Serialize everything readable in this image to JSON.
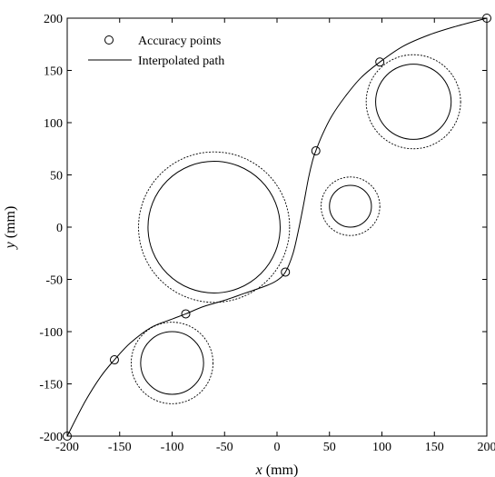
{
  "chart_data": {
    "type": "scatter",
    "title": "",
    "xlabel_var": "x",
    "xlabel_unit": " (mm)",
    "ylabel_var": "y",
    "ylabel_unit": " (mm)",
    "xlim": [
      -200,
      200
    ],
    "ylim": [
      -200,
      200
    ],
    "grid": false,
    "legend_position": "top-left",
    "x_ticks": [
      -200,
      -150,
      -100,
      -50,
      0,
      50,
      100,
      150,
      200
    ],
    "y_ticks": [
      -200,
      -150,
      -100,
      -50,
      0,
      50,
      100,
      150,
      200
    ],
    "series": [
      {
        "name": "Accuracy points",
        "kind": "markers",
        "marker": "open-circle",
        "x": [
          -200,
          -155,
          -87,
          8,
          37,
          98,
          200
        ],
        "y": [
          -200,
          -127,
          -83,
          -43,
          73,
          158,
          200
        ]
      },
      {
        "name": "Interpolated path",
        "kind": "line",
        "style": "solid",
        "x": [
          -200,
          -183,
          -168,
          -155,
          -140,
          -120,
          -100,
          -87,
          -70,
          -50,
          -30,
          -10,
          0,
          8,
          15,
          20,
          25,
          30,
          34,
          37,
          43,
          52,
          65,
          80,
          98,
          120,
          145,
          170,
          200
        ],
        "y": [
          -200,
          -167,
          -143,
          -127,
          -111,
          -96,
          -88,
          -83,
          -76,
          -70,
          -63,
          -56,
          -51,
          -43,
          -26,
          -5,
          20,
          47,
          64,
          73,
          88,
          106,
          125,
          143,
          158,
          173,
          184,
          192,
          200
        ]
      }
    ],
    "obstacles": [
      {
        "cx": -60,
        "cy": 0,
        "r": 63,
        "clearance": 72
      },
      {
        "cx": 70,
        "cy": 20,
        "r": 20,
        "clearance": 28
      },
      {
        "cx": 130,
        "cy": 120,
        "r": 36,
        "clearance": 45
      },
      {
        "cx": -100,
        "cy": -130,
        "r": 30,
        "clearance": 39
      }
    ]
  }
}
